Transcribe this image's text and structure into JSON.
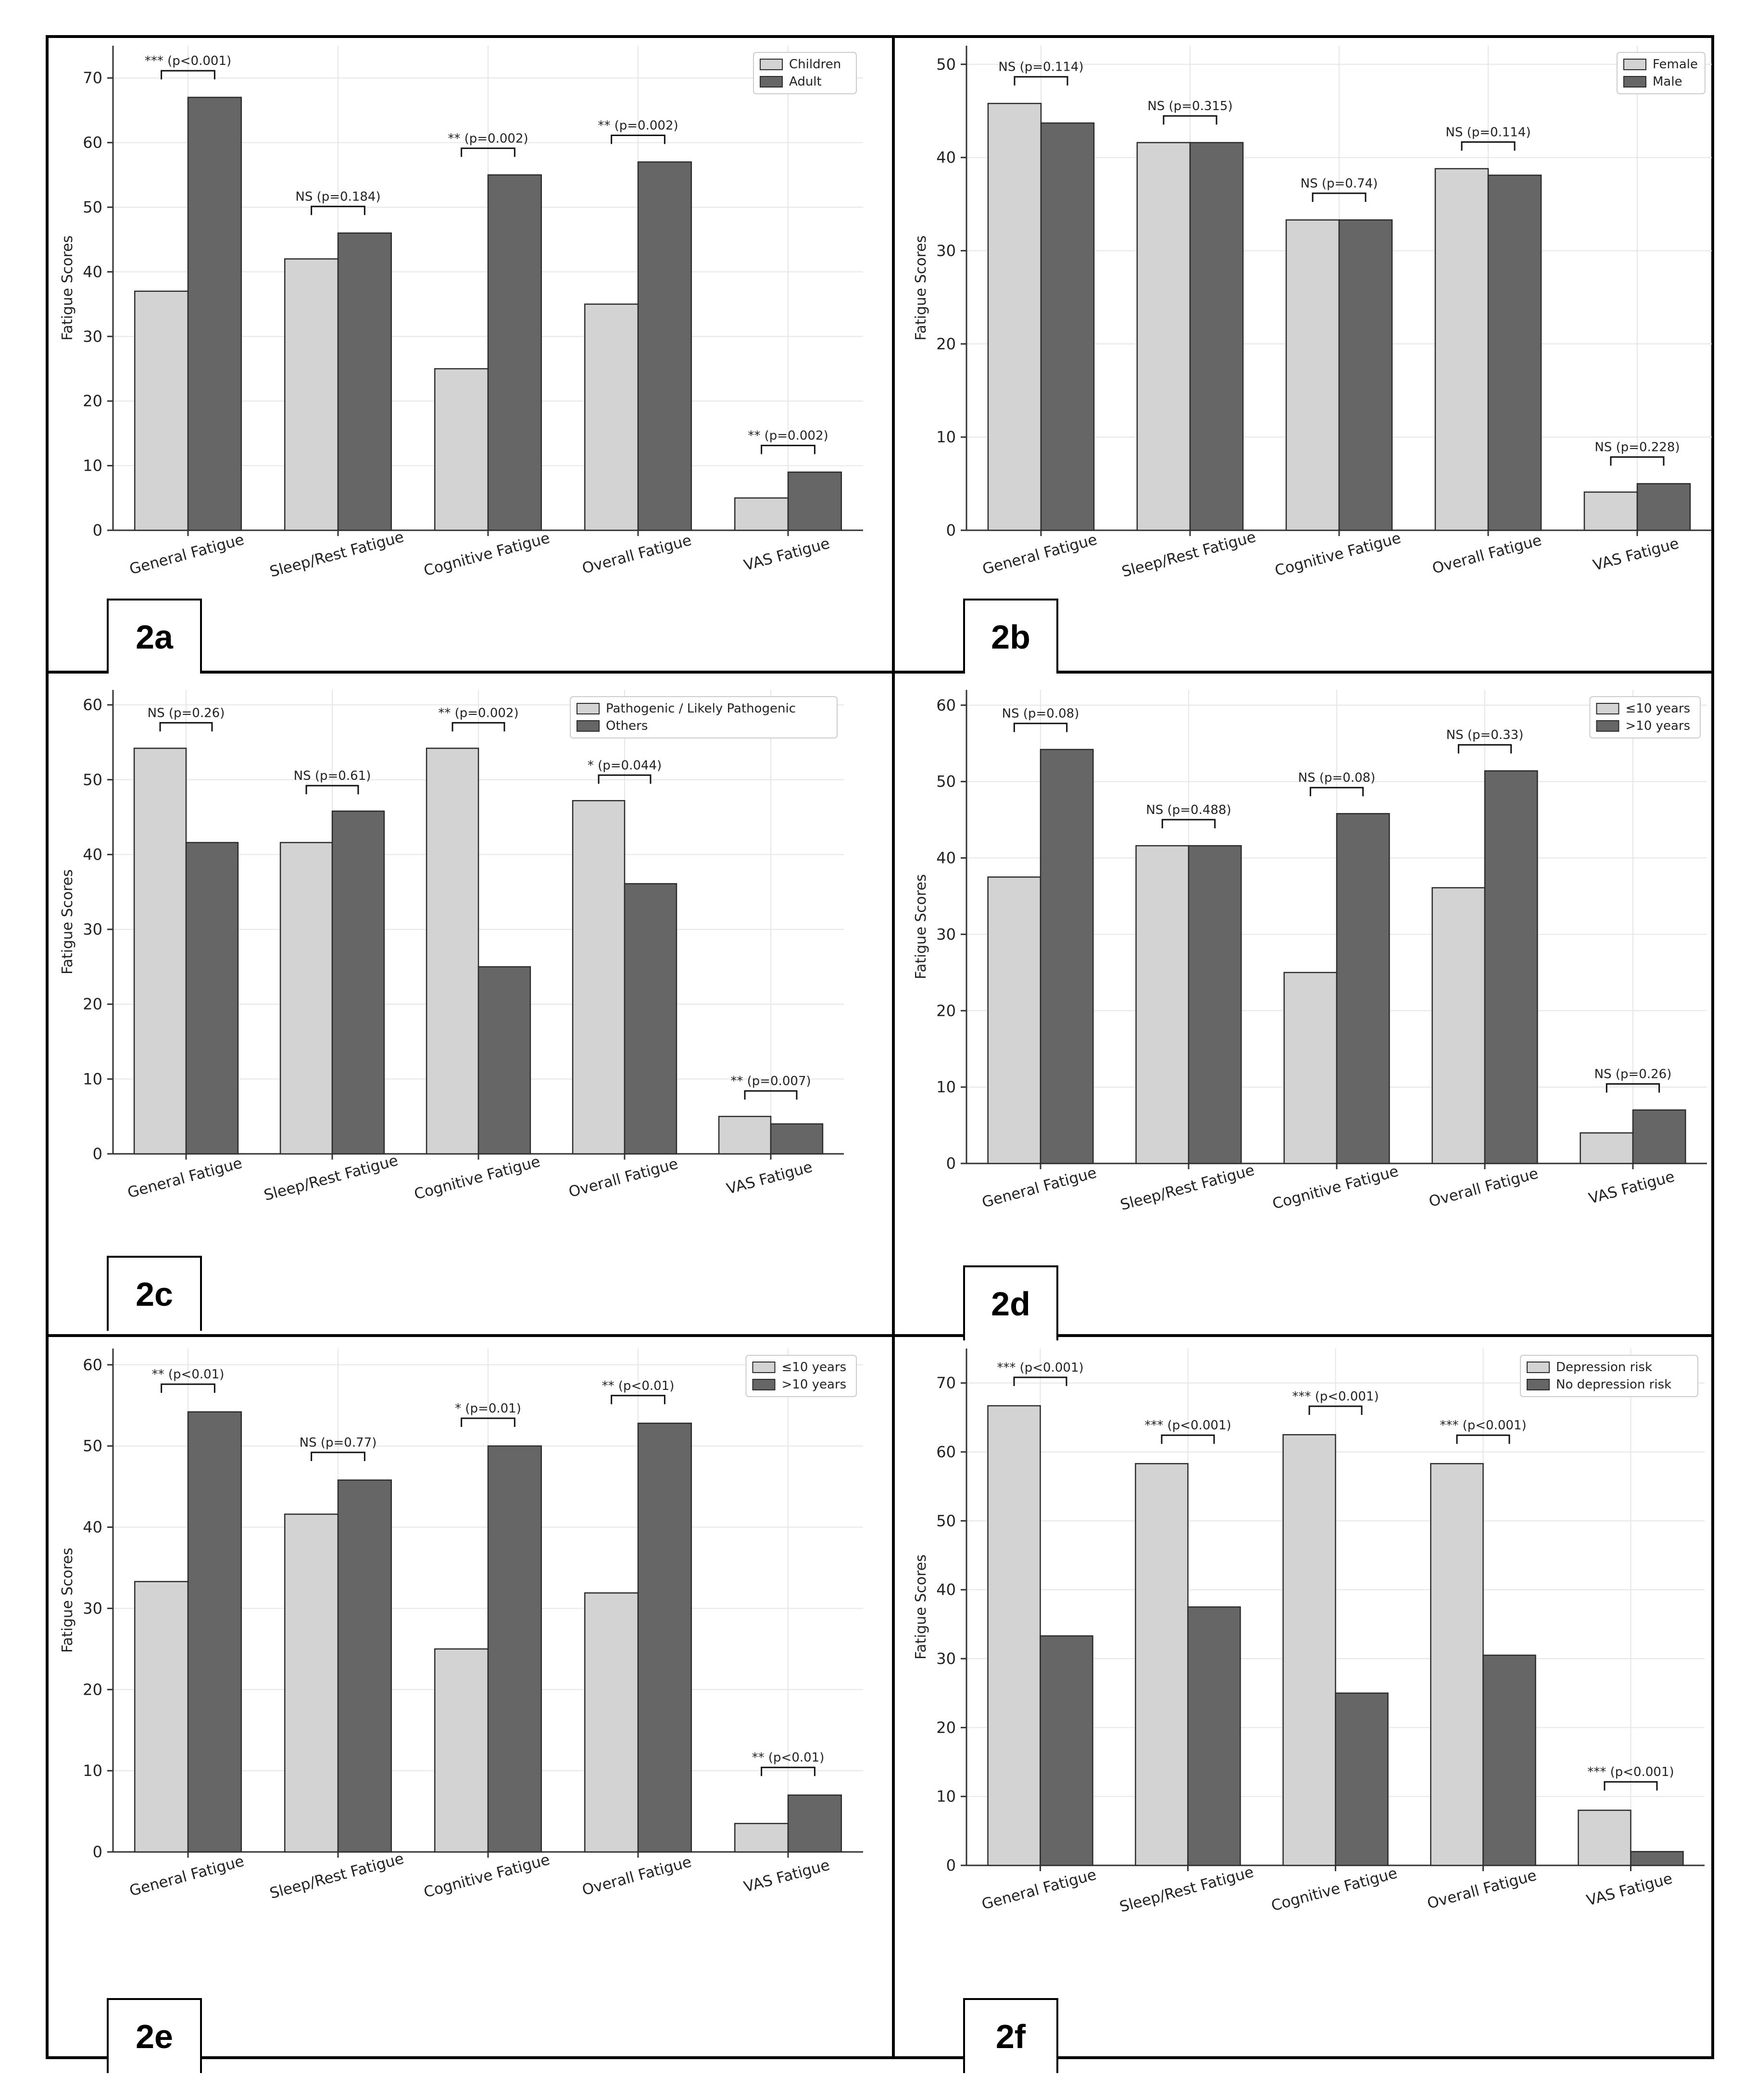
{
  "colors": {
    "light_bar": "#d3d3d3",
    "dark_bar": "#666666",
    "edge": "#2a2a2a",
    "grid": "#e6e6e6"
  },
  "chart_data": [
    {
      "panel": "2a",
      "type": "bar",
      "ylabel": "Fatigue Scores",
      "ylim": [
        0,
        75
      ],
      "yticks": [
        0,
        10,
        20,
        30,
        40,
        50,
        60,
        70
      ],
      "categories": [
        "General Fatigue",
        "Sleep/Rest Fatigue",
        "Cognitive Fatigue",
        "Overall Fatigue",
        "VAS Fatigue"
      ],
      "series": [
        {
          "name": "Children",
          "values": [
            37,
            42,
            25,
            35,
            5
          ]
        },
        {
          "name": "Adult",
          "values": [
            67,
            46,
            55,
            57,
            9
          ]
        }
      ],
      "annotations": [
        "*** (p<0.001)",
        "NS (p=0.184)",
        "** (p=0.002)",
        "** (p=0.002)",
        "** (p=0.002)"
      ],
      "legend": "top-right"
    },
    {
      "panel": "2b",
      "type": "bar",
      "ylabel": "Fatigue Scores",
      "ylim": [
        0,
        52
      ],
      "yticks": [
        0,
        10,
        20,
        30,
        40,
        50
      ],
      "categories": [
        "General Fatigue",
        "Sleep/Rest Fatigue",
        "Cognitive Fatigue",
        "Overall Fatigue",
        "VAS Fatigue"
      ],
      "series": [
        {
          "name": "Female",
          "values": [
            45.8,
            41.6,
            33.3,
            38.8,
            4.1
          ]
        },
        {
          "name": "Male",
          "values": [
            43.7,
            41.6,
            33.3,
            38.1,
            5.0
          ]
        }
      ],
      "annotations": [
        "NS (p=0.114)",
        "NS (p=0.315)",
        "NS (p=0.74)",
        "NS (p=0.114)",
        "NS (p=0.228)"
      ],
      "legend": "top-right"
    },
    {
      "panel": "2c",
      "type": "bar",
      "ylabel": "Fatigue Scores",
      "ylim": [
        0,
        62
      ],
      "yticks": [
        0,
        10,
        20,
        30,
        40,
        50,
        60
      ],
      "categories": [
        "General Fatigue",
        "Sleep/Rest Fatigue",
        "Cognitive Fatigue",
        "Overall Fatigue",
        "VAS Fatigue"
      ],
      "series": [
        {
          "name": "Pathogenic / Likely Pathogenic",
          "values": [
            54.2,
            41.6,
            54.2,
            47.2,
            5
          ]
        },
        {
          "name": "Others",
          "values": [
            41.6,
            45.8,
            25,
            36.1,
            4
          ]
        }
      ],
      "annotations": [
        "NS (p=0.26)",
        "NS (p=0.61)",
        "** (p=0.002)",
        "* (p=0.044)",
        "** (p=0.007)"
      ],
      "legend": "top-right"
    },
    {
      "panel": "2d",
      "type": "bar",
      "ylabel": "Fatigue Scores",
      "ylim": [
        0,
        62
      ],
      "yticks": [
        0,
        10,
        20,
        30,
        40,
        50,
        60
      ],
      "categories": [
        "General Fatigue",
        "Sleep/Rest Fatigue",
        "Cognitive Fatigue",
        "Overall Fatigue",
        "VAS Fatigue"
      ],
      "series": [
        {
          "name": "≤10 years",
          "values": [
            37.5,
            41.6,
            25,
            36.1,
            4
          ]
        },
        {
          "name": ">10 years",
          "values": [
            54.2,
            41.6,
            45.8,
            51.4,
            7
          ]
        }
      ],
      "annotations": [
        "NS (p=0.08)",
        "NS (p=0.488)",
        "NS (p=0.08)",
        "NS (p=0.33)",
        "NS (p=0.26)"
      ],
      "legend": "top-right"
    },
    {
      "panel": "2e",
      "type": "bar",
      "ylabel": "Fatigue Scores",
      "ylim": [
        0,
        62
      ],
      "yticks": [
        0,
        10,
        20,
        30,
        40,
        50,
        60
      ],
      "categories": [
        "General Fatigue",
        "Sleep/Rest Fatigue",
        "Cognitive Fatigue",
        "Overall Fatigue",
        "VAS Fatigue"
      ],
      "series": [
        {
          "name": "≤10 years",
          "values": [
            33.3,
            41.6,
            25,
            31.9,
            3.5
          ]
        },
        {
          "name": ">10 years",
          "values": [
            54.2,
            45.8,
            50,
            52.8,
            7
          ]
        }
      ],
      "annotations": [
        "** (p<0.01)",
        "NS (p=0.77)",
        "* (p=0.01)",
        "** (p<0.01)",
        "** (p<0.01)"
      ],
      "legend": "top-right"
    },
    {
      "panel": "2f",
      "type": "bar",
      "ylabel": "Fatigue Scores",
      "ylim": [
        0,
        75
      ],
      "yticks": [
        0,
        10,
        20,
        30,
        40,
        50,
        60,
        70
      ],
      "categories": [
        "General Fatigue",
        "Sleep/Rest Fatigue",
        "Cognitive Fatigue",
        "Overall Fatigue",
        "VAS Fatigue"
      ],
      "series": [
        {
          "name": "Depression risk",
          "values": [
            66.7,
            58.3,
            62.5,
            58.3,
            8
          ]
        },
        {
          "name": "No depression risk",
          "values": [
            33.3,
            37.5,
            25,
            30.5,
            2
          ]
        }
      ],
      "annotations": [
        "*** (p<0.001)",
        "*** (p<0.001)",
        "*** (p<0.001)",
        "*** (p<0.001)",
        "*** (p<0.001)"
      ],
      "legend": "top-right"
    }
  ]
}
